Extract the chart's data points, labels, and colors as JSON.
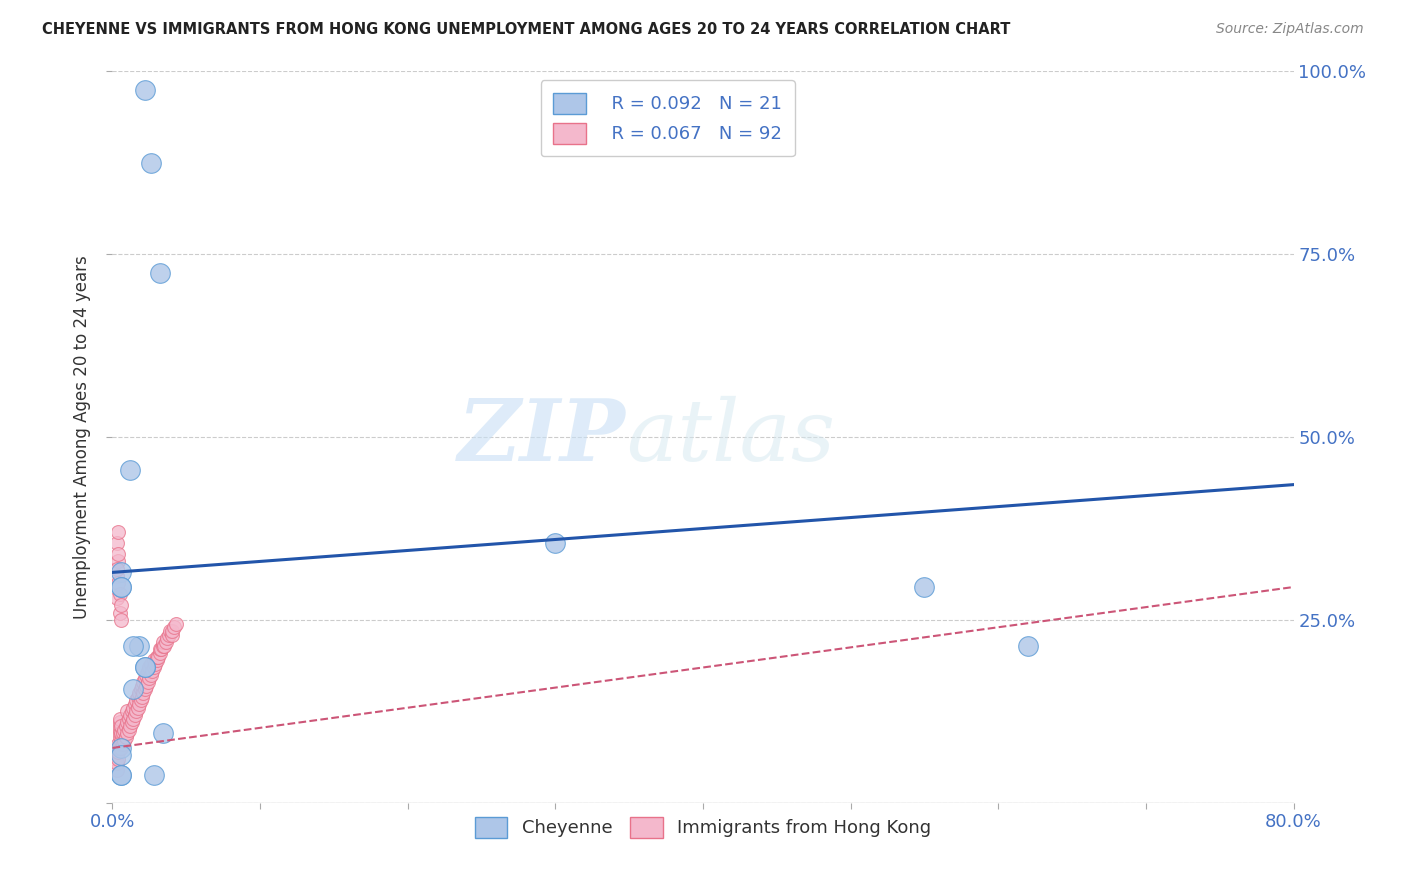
{
  "title": "CHEYENNE VS IMMIGRANTS FROM HONG KONG UNEMPLOYMENT AMONG AGES 20 TO 24 YEARS CORRELATION CHART",
  "source": "Source: ZipAtlas.com",
  "ylabel": "Unemployment Among Ages 20 to 24 years",
  "xlim": [
    0.0,
    0.8
  ],
  "ylim": [
    0.0,
    1.0
  ],
  "xticks": [
    0.0,
    0.1,
    0.2,
    0.3,
    0.4,
    0.5,
    0.6,
    0.7,
    0.8
  ],
  "xtick_labels_show": {
    "0.0": "0.0%",
    "0.8": "80.0%"
  },
  "yticks": [
    0.0,
    0.25,
    0.5,
    0.75,
    1.0
  ],
  "ytick_labels_right": [
    "",
    "25.0%",
    "50.0%",
    "75.0%",
    "100.0%"
  ],
  "cheyenne_color": "#aec6e8",
  "hk_color": "#f4b8cc",
  "cheyenne_edge_color": "#5b9bd5",
  "hk_edge_color": "#e8728a",
  "cheyenne_line_color": "#2255aa",
  "hk_line_color": "#cc5577",
  "legend_r1": "R = 0.092",
  "legend_n1": "N = 21",
  "legend_r2": "R = 0.067",
  "legend_n2": "N = 92",
  "cheyenne_x": [
    0.022,
    0.026,
    0.032,
    0.012,
    0.006,
    0.3,
    0.55,
    0.62,
    0.006,
    0.018,
    0.022,
    0.014,
    0.006,
    0.006,
    0.006,
    0.028,
    0.034,
    0.006,
    0.006,
    0.014,
    0.022
  ],
  "cheyenne_y": [
    0.975,
    0.875,
    0.725,
    0.455,
    0.315,
    0.355,
    0.295,
    0.215,
    0.295,
    0.215,
    0.185,
    0.155,
    0.295,
    0.075,
    0.038,
    0.038,
    0.095,
    0.038,
    0.065,
    0.215,
    0.185
  ],
  "hk_x": [
    0.003,
    0.003,
    0.004,
    0.004,
    0.004,
    0.004,
    0.005,
    0.005,
    0.005,
    0.005,
    0.005,
    0.005,
    0.005,
    0.005,
    0.006,
    0.006,
    0.006,
    0.006,
    0.007,
    0.007,
    0.008,
    0.008,
    0.009,
    0.009,
    0.01,
    0.01,
    0.01,
    0.011,
    0.011,
    0.012,
    0.012,
    0.013,
    0.013,
    0.014,
    0.014,
    0.015,
    0.015,
    0.016,
    0.016,
    0.017,
    0.017,
    0.018,
    0.018,
    0.019,
    0.019,
    0.02,
    0.02,
    0.021,
    0.021,
    0.022,
    0.022,
    0.023,
    0.023,
    0.024,
    0.024,
    0.025,
    0.025,
    0.026,
    0.026,
    0.027,
    0.028,
    0.028,
    0.029,
    0.03,
    0.03,
    0.031,
    0.032,
    0.032,
    0.033,
    0.034,
    0.034,
    0.035,
    0.036,
    0.037,
    0.038,
    0.039,
    0.04,
    0.04,
    0.042,
    0.043,
    0.003,
    0.003,
    0.004,
    0.004,
    0.005,
    0.005,
    0.006,
    0.006,
    0.003,
    0.003,
    0.004,
    0.004
  ],
  "hk_y": [
    0.045,
    0.055,
    0.06,
    0.07,
    0.075,
    0.08,
    0.075,
    0.08,
    0.09,
    0.095,
    0.1,
    0.105,
    0.11,
    0.115,
    0.075,
    0.085,
    0.095,
    0.105,
    0.08,
    0.095,
    0.085,
    0.1,
    0.09,
    0.105,
    0.095,
    0.11,
    0.125,
    0.1,
    0.115,
    0.105,
    0.12,
    0.11,
    0.125,
    0.115,
    0.13,
    0.12,
    0.135,
    0.125,
    0.14,
    0.13,
    0.145,
    0.135,
    0.15,
    0.14,
    0.155,
    0.145,
    0.16,
    0.15,
    0.165,
    0.155,
    0.17,
    0.16,
    0.175,
    0.165,
    0.18,
    0.17,
    0.185,
    0.175,
    0.19,
    0.18,
    0.185,
    0.195,
    0.19,
    0.195,
    0.2,
    0.2,
    0.205,
    0.21,
    0.21,
    0.215,
    0.22,
    0.215,
    0.22,
    0.225,
    0.23,
    0.235,
    0.23,
    0.235,
    0.24,
    0.245,
    0.28,
    0.31,
    0.3,
    0.33,
    0.26,
    0.285,
    0.25,
    0.27,
    0.32,
    0.355,
    0.34,
    0.37
  ],
  "watermark_zip": "ZIP",
  "watermark_atlas": "atlas",
  "cheyenne_trend_x": [
    0.0,
    0.8
  ],
  "cheyenne_trend_y": [
    0.315,
    0.435
  ],
  "hk_trend_x": [
    0.0,
    0.8
  ],
  "hk_trend_y": [
    0.075,
    0.295
  ],
  "marker_size_cheyenne": 200,
  "marker_size_hk": 100,
  "background_color": "#ffffff",
  "grid_color": "#cccccc",
  "axis_tick_color": "#4472c4",
  "label_color": "#333333"
}
